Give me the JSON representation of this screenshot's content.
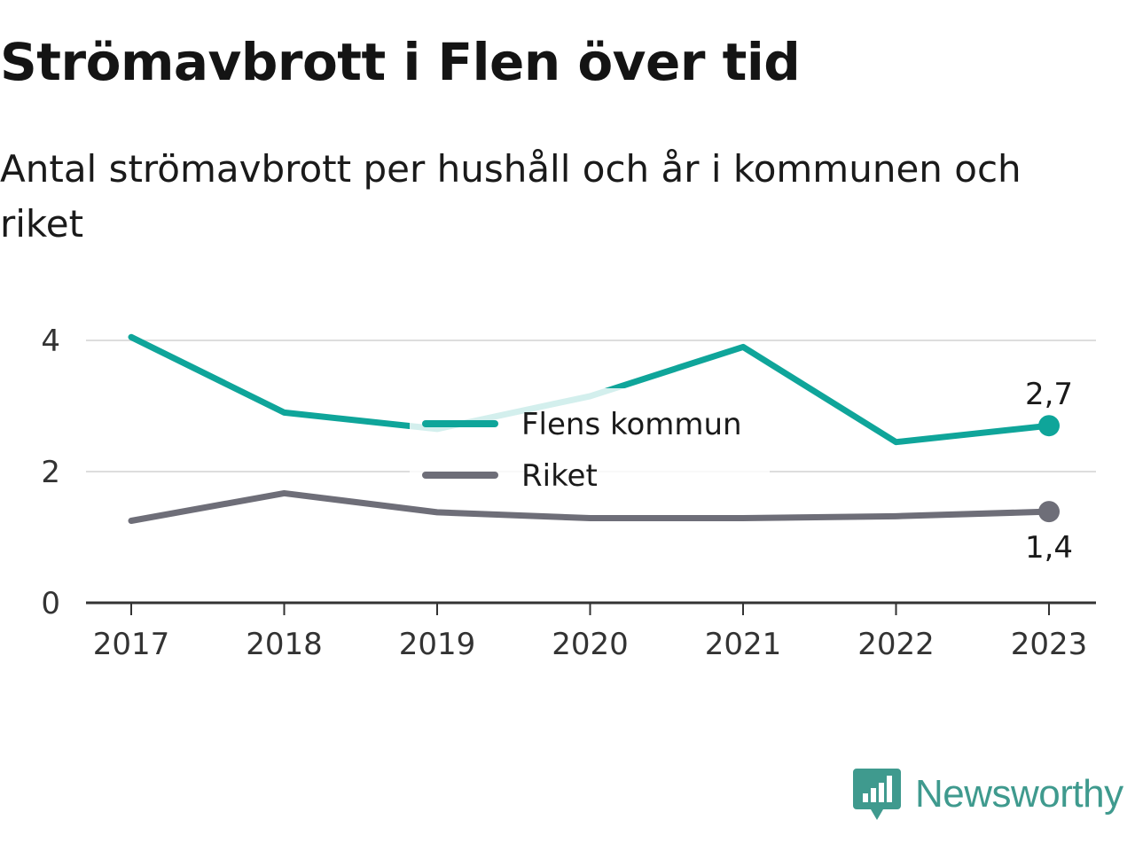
{
  "title": "Strömavbrott i Flen över tid",
  "subtitle": "Antal strömavbrott per hushåll och år i kommunen och riket",
  "brand": {
    "name": "Newsworthy",
    "icon": "newsworthy-logo-icon",
    "color": "#3f9a8e"
  },
  "chart_data": {
    "type": "line",
    "x": [
      "2017",
      "2018",
      "2019",
      "2020",
      "2021",
      "2022",
      "2023"
    ],
    "yticks": [
      "0",
      "2",
      "4"
    ],
    "ylim": [
      0,
      4
    ],
    "grid": true,
    "legend_position": "center",
    "series": [
      {
        "name": "Flens kommun",
        "color": "#0fa59a",
        "values": [
          4.05,
          2.9,
          2.65,
          3.15,
          3.9,
          2.45,
          2.7
        ],
        "end_label": "2,7"
      },
      {
        "name": "Riket",
        "color": "#6e6e78",
        "values": [
          1.25,
          1.67,
          1.38,
          1.29,
          1.29,
          1.32,
          1.39
        ],
        "end_label": "1,4"
      }
    ]
  }
}
